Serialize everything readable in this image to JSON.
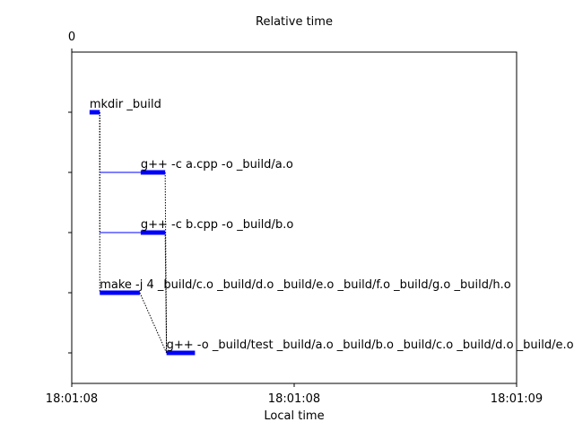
{
  "chart_data": {
    "type": "gantt",
    "title_top": "Relative time",
    "xlabel": "Local time",
    "top_axis_ticks": [
      {
        "t": 0.0,
        "label": "0"
      }
    ],
    "bottom_axis_ticks": [
      {
        "t": 0.0,
        "label": "18:01:08"
      },
      {
        "t": 0.5,
        "label": "18:01:08"
      },
      {
        "t": 1.0,
        "label": "18:01:09"
      }
    ],
    "xlim": [
      0.0,
      1.0
    ],
    "tasks": [
      {
        "label": "mkdir _build",
        "start": 0.04,
        "end": 0.063
      },
      {
        "label": "g++ -c a.cpp -o _build/a.o",
        "start": 0.155,
        "end": 0.21
      },
      {
        "label": "g++ -c b.cpp -o _build/b.o",
        "start": 0.155,
        "end": 0.21
      },
      {
        "label": "make -j 4 _build/c.o _build/d.o _build/e.o _build/f.o _build/g.o _build/h.o",
        "start": 0.063,
        "end": 0.153
      },
      {
        "label": "g++ -o _build/test _build/a.o _build/b.o _build/c.o _build/d.o _build/e.o _build/f.o _build/g.o _build/h.o",
        "start": 0.213,
        "end": 0.277
      }
    ],
    "waits": [
      {
        "task": 1,
        "from": 0.063
      },
      {
        "task": 2,
        "from": 0.063
      }
    ],
    "dependencies": [
      {
        "from": 0,
        "to": 1,
        "t": 0.063
      },
      {
        "from": 0,
        "to": 2,
        "t": 0.063
      },
      {
        "from": 0,
        "to": 3,
        "t": 0.063
      },
      {
        "from": 1,
        "to": 4
      },
      {
        "from": 2,
        "to": 4
      },
      {
        "from": 3,
        "to": 4
      }
    ],
    "bar_color": "#0000ff",
    "grid": false
  }
}
